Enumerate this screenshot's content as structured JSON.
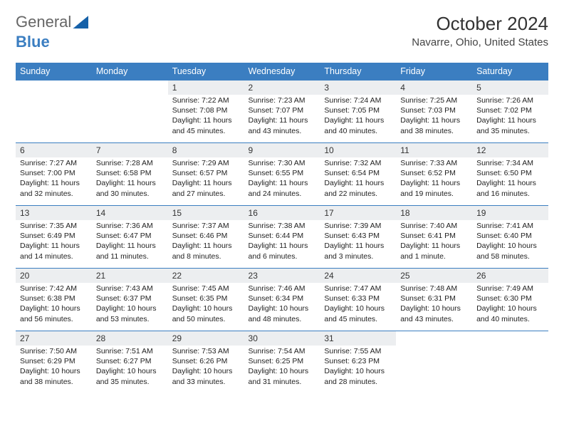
{
  "brand": {
    "part1": "General",
    "part2": "Blue"
  },
  "title": "October 2024",
  "location": "Navarre, Ohio, United States",
  "colors": {
    "header_bg": "#3b7ec1",
    "daynum_bg": "#eceef0",
    "border": "#3b7ec1"
  },
  "weekdays": [
    "Sunday",
    "Monday",
    "Tuesday",
    "Wednesday",
    "Thursday",
    "Friday",
    "Saturday"
  ],
  "weeks": [
    [
      null,
      null,
      {
        "n": "1",
        "sr": "Sunrise: 7:22 AM",
        "ss": "Sunset: 7:08 PM",
        "dl": "Daylight: 11 hours and 45 minutes."
      },
      {
        "n": "2",
        "sr": "Sunrise: 7:23 AM",
        "ss": "Sunset: 7:07 PM",
        "dl": "Daylight: 11 hours and 43 minutes."
      },
      {
        "n": "3",
        "sr": "Sunrise: 7:24 AM",
        "ss": "Sunset: 7:05 PM",
        "dl": "Daylight: 11 hours and 40 minutes."
      },
      {
        "n": "4",
        "sr": "Sunrise: 7:25 AM",
        "ss": "Sunset: 7:03 PM",
        "dl": "Daylight: 11 hours and 38 minutes."
      },
      {
        "n": "5",
        "sr": "Sunrise: 7:26 AM",
        "ss": "Sunset: 7:02 PM",
        "dl": "Daylight: 11 hours and 35 minutes."
      }
    ],
    [
      {
        "n": "6",
        "sr": "Sunrise: 7:27 AM",
        "ss": "Sunset: 7:00 PM",
        "dl": "Daylight: 11 hours and 32 minutes."
      },
      {
        "n": "7",
        "sr": "Sunrise: 7:28 AM",
        "ss": "Sunset: 6:58 PM",
        "dl": "Daylight: 11 hours and 30 minutes."
      },
      {
        "n": "8",
        "sr": "Sunrise: 7:29 AM",
        "ss": "Sunset: 6:57 PM",
        "dl": "Daylight: 11 hours and 27 minutes."
      },
      {
        "n": "9",
        "sr": "Sunrise: 7:30 AM",
        "ss": "Sunset: 6:55 PM",
        "dl": "Daylight: 11 hours and 24 minutes."
      },
      {
        "n": "10",
        "sr": "Sunrise: 7:32 AM",
        "ss": "Sunset: 6:54 PM",
        "dl": "Daylight: 11 hours and 22 minutes."
      },
      {
        "n": "11",
        "sr": "Sunrise: 7:33 AM",
        "ss": "Sunset: 6:52 PM",
        "dl": "Daylight: 11 hours and 19 minutes."
      },
      {
        "n": "12",
        "sr": "Sunrise: 7:34 AM",
        "ss": "Sunset: 6:50 PM",
        "dl": "Daylight: 11 hours and 16 minutes."
      }
    ],
    [
      {
        "n": "13",
        "sr": "Sunrise: 7:35 AM",
        "ss": "Sunset: 6:49 PM",
        "dl": "Daylight: 11 hours and 14 minutes."
      },
      {
        "n": "14",
        "sr": "Sunrise: 7:36 AM",
        "ss": "Sunset: 6:47 PM",
        "dl": "Daylight: 11 hours and 11 minutes."
      },
      {
        "n": "15",
        "sr": "Sunrise: 7:37 AM",
        "ss": "Sunset: 6:46 PM",
        "dl": "Daylight: 11 hours and 8 minutes."
      },
      {
        "n": "16",
        "sr": "Sunrise: 7:38 AM",
        "ss": "Sunset: 6:44 PM",
        "dl": "Daylight: 11 hours and 6 minutes."
      },
      {
        "n": "17",
        "sr": "Sunrise: 7:39 AM",
        "ss": "Sunset: 6:43 PM",
        "dl": "Daylight: 11 hours and 3 minutes."
      },
      {
        "n": "18",
        "sr": "Sunrise: 7:40 AM",
        "ss": "Sunset: 6:41 PM",
        "dl": "Daylight: 11 hours and 1 minute."
      },
      {
        "n": "19",
        "sr": "Sunrise: 7:41 AM",
        "ss": "Sunset: 6:40 PM",
        "dl": "Daylight: 10 hours and 58 minutes."
      }
    ],
    [
      {
        "n": "20",
        "sr": "Sunrise: 7:42 AM",
        "ss": "Sunset: 6:38 PM",
        "dl": "Daylight: 10 hours and 56 minutes."
      },
      {
        "n": "21",
        "sr": "Sunrise: 7:43 AM",
        "ss": "Sunset: 6:37 PM",
        "dl": "Daylight: 10 hours and 53 minutes."
      },
      {
        "n": "22",
        "sr": "Sunrise: 7:45 AM",
        "ss": "Sunset: 6:35 PM",
        "dl": "Daylight: 10 hours and 50 minutes."
      },
      {
        "n": "23",
        "sr": "Sunrise: 7:46 AM",
        "ss": "Sunset: 6:34 PM",
        "dl": "Daylight: 10 hours and 48 minutes."
      },
      {
        "n": "24",
        "sr": "Sunrise: 7:47 AM",
        "ss": "Sunset: 6:33 PM",
        "dl": "Daylight: 10 hours and 45 minutes."
      },
      {
        "n": "25",
        "sr": "Sunrise: 7:48 AM",
        "ss": "Sunset: 6:31 PM",
        "dl": "Daylight: 10 hours and 43 minutes."
      },
      {
        "n": "26",
        "sr": "Sunrise: 7:49 AM",
        "ss": "Sunset: 6:30 PM",
        "dl": "Daylight: 10 hours and 40 minutes."
      }
    ],
    [
      {
        "n": "27",
        "sr": "Sunrise: 7:50 AM",
        "ss": "Sunset: 6:29 PM",
        "dl": "Daylight: 10 hours and 38 minutes."
      },
      {
        "n": "28",
        "sr": "Sunrise: 7:51 AM",
        "ss": "Sunset: 6:27 PM",
        "dl": "Daylight: 10 hours and 35 minutes."
      },
      {
        "n": "29",
        "sr": "Sunrise: 7:53 AM",
        "ss": "Sunset: 6:26 PM",
        "dl": "Daylight: 10 hours and 33 minutes."
      },
      {
        "n": "30",
        "sr": "Sunrise: 7:54 AM",
        "ss": "Sunset: 6:25 PM",
        "dl": "Daylight: 10 hours and 31 minutes."
      },
      {
        "n": "31",
        "sr": "Sunrise: 7:55 AM",
        "ss": "Sunset: 6:23 PM",
        "dl": "Daylight: 10 hours and 28 minutes."
      },
      null,
      null
    ]
  ]
}
